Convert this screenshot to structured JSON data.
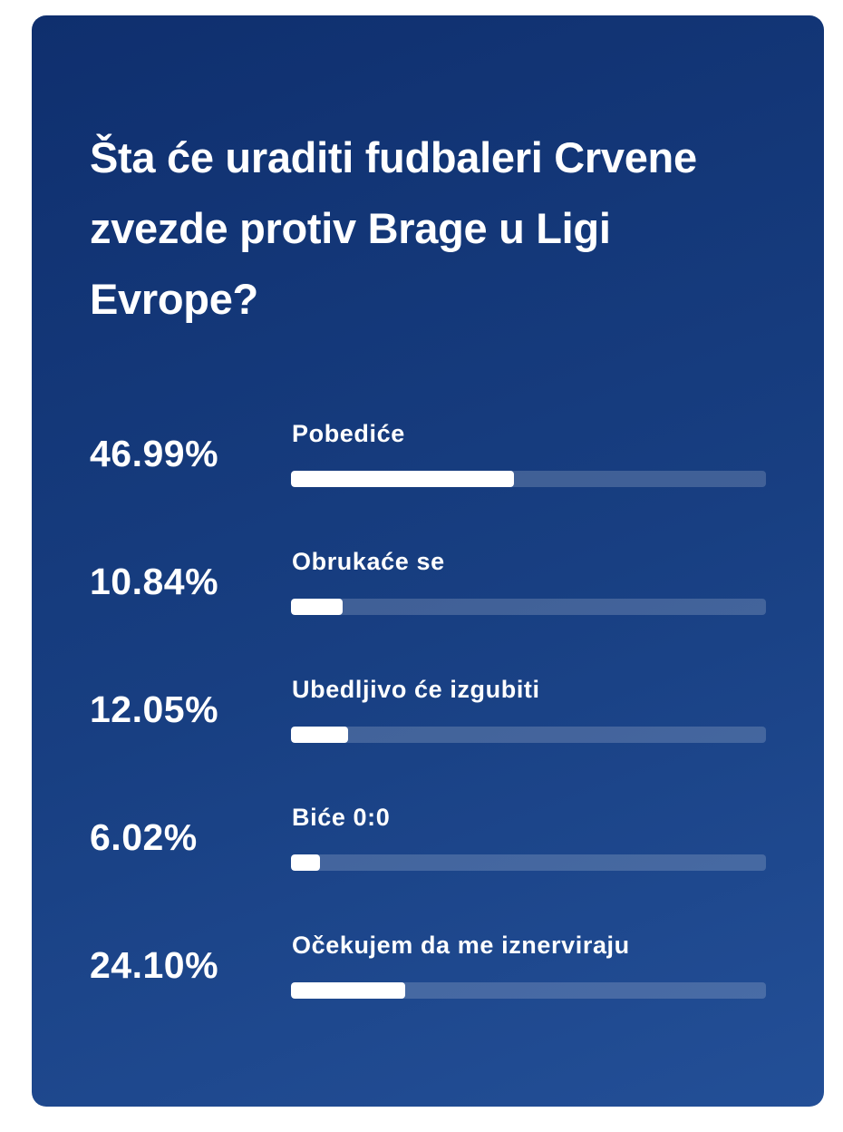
{
  "poll": {
    "question": "Šta će uraditi fudbaleri Crvene zvezde protiv Brage u Ligi Evrope?",
    "options": [
      {
        "percent_label": "46.99%",
        "percent": 46.99,
        "label": "Pobediće"
      },
      {
        "percent_label": "10.84%",
        "percent": 10.84,
        "label": "Obrukaće se"
      },
      {
        "percent_label": "12.05%",
        "percent": 12.05,
        "label": "Ubedljivo će izgubiti"
      },
      {
        "percent_label": "6.02%",
        "percent": 6.02,
        "label": "Biće 0:0"
      },
      {
        "percent_label": "24.10%",
        "percent": 24.1,
        "label": "Očekujem da me iznerviraju"
      }
    ],
    "colors": {
      "card_background": "#183f82",
      "bar_fill": "#ffffff",
      "text": "#ffffff"
    }
  }
}
